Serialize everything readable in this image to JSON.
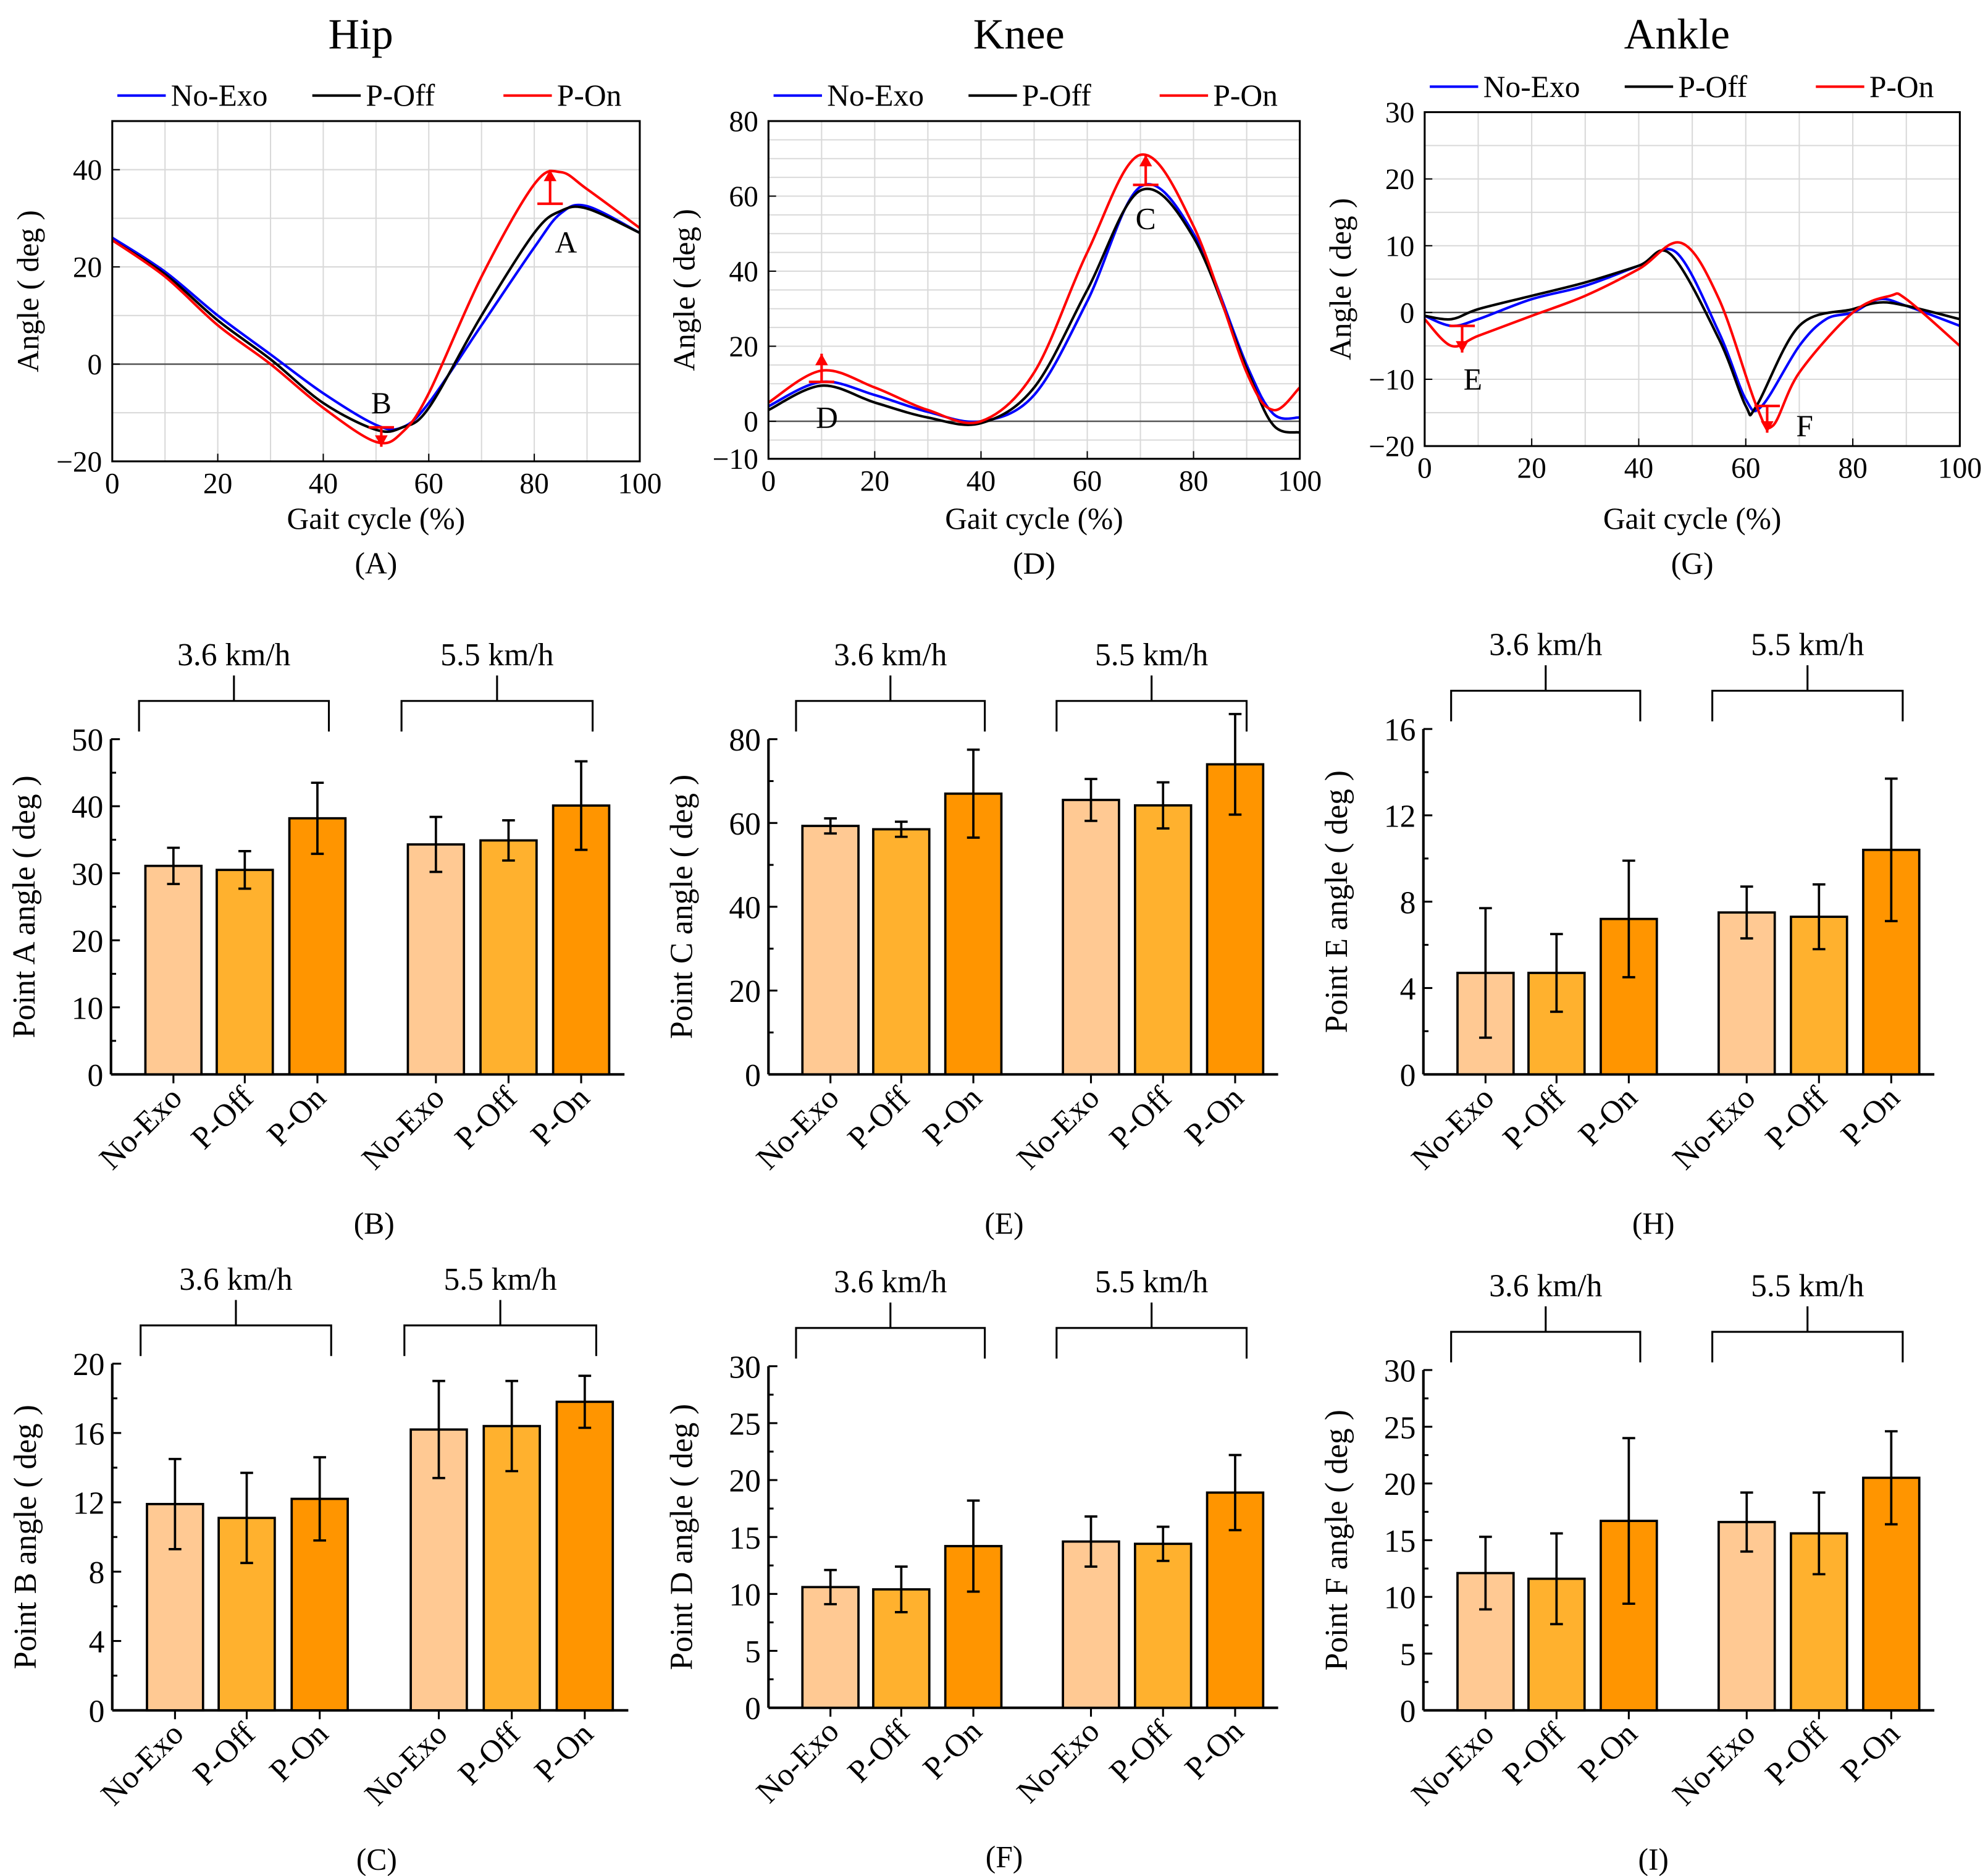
{
  "colors": {
    "no_exo_line": "#0000ff",
    "p_off_line": "#000000",
    "p_on_line": "#ff0000",
    "bar_no_exo": "#FFC993",
    "bar_p_off": "#FFB12E",
    "bar_p_on": "#FF9500",
    "grid": "#d9d9d9"
  },
  "chart_data": [
    {
      "panel": "(A)",
      "type": "line",
      "title": "Hip",
      "xlabel": "Gait cycle (%)",
      "ylabel": "Angle ( deg )",
      "xlim": [
        0,
        100
      ],
      "ylim": [
        -20,
        50
      ],
      "xticks": [
        0,
        20,
        40,
        60,
        80,
        100
      ],
      "yticks": [
        -20,
        0,
        20,
        40
      ],
      "grid": true,
      "legend": "top",
      "series": [
        {
          "name": "No-Exo",
          "color": "#0000ff",
          "x": [
            0,
            10,
            20,
            30,
            40,
            50,
            55,
            60,
            70,
            80,
            85,
            90,
            100
          ],
          "y": [
            26,
            19,
            10,
            2,
            -6,
            -12.5,
            -13,
            -8,
            8,
            24,
            31,
            32.5,
            27
          ]
        },
        {
          "name": "P-Off",
          "color": "#000000",
          "x": [
            0,
            10,
            20,
            30,
            40,
            50,
            55,
            60,
            70,
            80,
            85,
            90,
            100
          ],
          "y": [
            25.5,
            18.5,
            9,
            1,
            -8,
            -13.5,
            -13,
            -9,
            10,
            27,
            31.5,
            32,
            27
          ]
        },
        {
          "name": "P-On",
          "color": "#ff0000",
          "x": [
            0,
            10,
            20,
            30,
            40,
            50,
            55,
            60,
            70,
            80,
            85,
            90,
            100
          ],
          "y": [
            25.5,
            18,
            8,
            0,
            -9,
            -16,
            -14,
            -6,
            18,
            37,
            39.5,
            36,
            28
          ]
        }
      ],
      "annotations": [
        {
          "label": "A",
          "x": 83,
          "from": 33,
          "to": 40,
          "tx": 86,
          "ty": 25
        },
        {
          "label": "B",
          "x": 51,
          "from": -13,
          "to": -17,
          "tx": 51,
          "ty": -8
        }
      ]
    },
    {
      "panel": "(D)",
      "type": "line",
      "title": "Knee",
      "xlabel": "Gait cycle (%)",
      "ylabel": "Angle ( deg )",
      "xlim": [
        0,
        100
      ],
      "ylim": [
        -10,
        80
      ],
      "xticks": [
        0,
        20,
        40,
        60,
        80,
        100
      ],
      "yticks": [
        -10,
        0,
        20,
        40,
        60,
        80
      ],
      "grid": true,
      "legend": "top",
      "series": [
        {
          "name": "No-Exo",
          "color": "#0000ff",
          "x": [
            0,
            10,
            20,
            30,
            40,
            50,
            60,
            70,
            80,
            90,
            95,
            100
          ],
          "y": [
            4,
            10.5,
            7,
            2.5,
            0,
            7,
            32,
            62.5,
            50,
            15,
            2,
            1
          ]
        },
        {
          "name": "P-Off",
          "color": "#000000",
          "x": [
            0,
            10,
            20,
            30,
            40,
            50,
            60,
            70,
            80,
            90,
            95,
            100
          ],
          "y": [
            3,
            9.5,
            5,
            1,
            -0.5,
            9,
            35,
            61.5,
            49,
            14,
            -1,
            -3
          ]
        },
        {
          "name": "P-On",
          "color": "#ff0000",
          "x": [
            0,
            10,
            20,
            30,
            40,
            50,
            60,
            70,
            80,
            90,
            95,
            100
          ],
          "y": [
            5,
            13.5,
            9,
            3,
            0,
            13,
            45,
            71,
            52,
            13,
            3,
            9
          ]
        }
      ],
      "annotations": [
        {
          "label": "C",
          "x": 71,
          "from": 63,
          "to": 71,
          "tx": 71,
          "ty": 54
        },
        {
          "label": "D",
          "x": 10,
          "from": 10.5,
          "to": 18,
          "tx": 11,
          "ty": 1
        }
      ]
    },
    {
      "panel": "(G)",
      "type": "line",
      "title": "Ankle",
      "xlabel": "Gait cycle (%)",
      "ylabel": "Angle ( deg )",
      "xlim": [
        0,
        100
      ],
      "ylim": [
        -20,
        30
      ],
      "xticks": [
        0,
        20,
        40,
        60,
        80,
        100
      ],
      "yticks": [
        -20,
        -10,
        0,
        10,
        20,
        30
      ],
      "grid": true,
      "legend": "top",
      "series": [
        {
          "name": "No-Exo",
          "color": "#0000ff",
          "x": [
            0,
            5,
            10,
            20,
            30,
            40,
            47,
            55,
            60,
            63,
            70,
            75,
            80,
            85,
            90,
            100
          ],
          "y": [
            -0.5,
            -2,
            -1,
            2,
            4,
            7,
            9,
            -3,
            -13,
            -14,
            -5,
            -1,
            0,
            2,
            1,
            -2
          ]
        },
        {
          "name": "P-Off",
          "color": "#000000",
          "x": [
            0,
            5,
            10,
            20,
            30,
            40,
            46,
            55,
            60,
            62,
            70,
            80,
            85,
            90,
            100
          ],
          "y": [
            -0.5,
            -1,
            0.5,
            2.5,
            4.5,
            7,
            8.7,
            -4,
            -14,
            -14,
            -2,
            0.5,
            1.5,
            1,
            -1
          ]
        },
        {
          "name": "P-On",
          "color": "#ff0000",
          "x": [
            0,
            5,
            10,
            20,
            30,
            40,
            48,
            55,
            62,
            65,
            70,
            80,
            87,
            90,
            100
          ],
          "y": [
            -1,
            -5,
            -3.5,
            -0.5,
            2.5,
            6.5,
            10.4,
            2,
            -14,
            -17,
            -9,
            0,
            2.5,
            2,
            -5
          ]
        }
      ],
      "annotations": [
        {
          "label": "E",
          "x": 7,
          "from": -2,
          "to": -6,
          "tx": 9,
          "ty": -10
        },
        {
          "label": "F",
          "x": 64,
          "from": -14,
          "to": -18,
          "tx": 71,
          "ty": -17
        }
      ]
    },
    {
      "panel": "(B)",
      "type": "bar",
      "ylabel": "Point A  angle ( deg )",
      "ylim": [
        0,
        50
      ],
      "yticks": [
        0,
        10,
        20,
        30,
        40,
        50
      ],
      "groups": [
        "3.6 km/h",
        "5.5 km/h"
      ],
      "categories": [
        "No-Exo",
        "P-Off",
        "P-On"
      ],
      "series": [
        {
          "group": "3.6 km/h",
          "values": [
            31.1,
            30.5,
            38.2
          ],
          "errors": [
            2.7,
            2.8,
            5.3
          ]
        },
        {
          "group": "5.5 km/h",
          "values": [
            34.3,
            34.9,
            40.1
          ],
          "errors": [
            4.1,
            3.0,
            6.6
          ]
        }
      ]
    },
    {
      "panel": "(E)",
      "type": "bar",
      "ylabel": "Point C  angle ( deg )",
      "ylim": [
        0,
        80
      ],
      "yticks": [
        0,
        20,
        40,
        60,
        80
      ],
      "groups": [
        "3.6 km/h",
        "5.5 km/h"
      ],
      "categories": [
        "No-Exo",
        "P-Off",
        "P-On"
      ],
      "series": [
        {
          "group": "3.6 km/h",
          "values": [
            59.3,
            58.5,
            67.0
          ],
          "errors": [
            1.8,
            1.8,
            10.5
          ]
        },
        {
          "group": "5.5 km/h",
          "values": [
            65.5,
            64.2,
            74.0
          ],
          "errors": [
            5.0,
            5.5,
            12.0
          ]
        }
      ]
    },
    {
      "panel": "(H)",
      "type": "bar",
      "ylabel": "Point E  angle ( deg )",
      "ylim": [
        0,
        16
      ],
      "yticks": [
        0,
        4,
        8,
        12,
        16
      ],
      "groups": [
        "3.6 km/h",
        "5.5 km/h"
      ],
      "categories": [
        "No-Exo",
        "P-Off",
        "P-On"
      ],
      "series": [
        {
          "group": "3.6 km/h",
          "values": [
            4.7,
            4.7,
            7.2
          ],
          "errors": [
            3.0,
            1.8,
            2.7
          ]
        },
        {
          "group": "5.5 km/h",
          "values": [
            7.5,
            7.3,
            10.4
          ],
          "errors": [
            1.2,
            1.5,
            3.3
          ]
        }
      ]
    },
    {
      "panel": "(C)",
      "type": "bar",
      "ylabel": "Point B  angle ( deg )",
      "ylim": [
        0,
        20
      ],
      "yticks": [
        0,
        4,
        8,
        12,
        16,
        20
      ],
      "groups": [
        "3.6 km/h",
        "5.5 km/h"
      ],
      "categories": [
        "No-Exo",
        "P-Off",
        "P-On"
      ],
      "series": [
        {
          "group": "3.6 km/h",
          "values": [
            11.9,
            11.1,
            12.2
          ],
          "errors": [
            2.6,
            2.6,
            2.4
          ]
        },
        {
          "group": "5.5 km/h",
          "values": [
            16.2,
            16.4,
            17.8
          ],
          "errors": [
            2.8,
            2.6,
            1.5
          ]
        }
      ]
    },
    {
      "panel": "(F)",
      "type": "bar",
      "ylabel": "Point D  angle ( deg )",
      "ylim": [
        0,
        30
      ],
      "yticks": [
        0,
        5,
        10,
        15,
        20,
        25,
        30
      ],
      "groups": [
        "3.6 km/h",
        "5.5 km/h"
      ],
      "categories": [
        "No-Exo",
        "P-Off",
        "P-On"
      ],
      "series": [
        {
          "group": "3.6 km/h",
          "values": [
            10.6,
            10.4,
            14.2
          ],
          "errors": [
            1.5,
            2.0,
            4.0
          ]
        },
        {
          "group": "5.5 km/h",
          "values": [
            14.6,
            14.4,
            18.9
          ],
          "errors": [
            2.2,
            1.5,
            3.3
          ]
        }
      ]
    },
    {
      "panel": "(I)",
      "type": "bar",
      "ylabel": "Point F  angle ( deg )",
      "ylim": [
        0,
        30
      ],
      "yticks": [
        0,
        5,
        10,
        15,
        20,
        25,
        30
      ],
      "groups": [
        "3.6 km/h",
        "5.5 km/h"
      ],
      "categories": [
        "No-Exo",
        "P-Off",
        "P-On"
      ],
      "series": [
        {
          "group": "3.6 km/h",
          "values": [
            12.1,
            11.6,
            16.7
          ],
          "errors": [
            3.2,
            4.0,
            7.3
          ]
        },
        {
          "group": "5.5 km/h",
          "values": [
            16.6,
            15.6,
            20.5
          ],
          "errors": [
            2.6,
            3.6,
            4.1
          ]
        }
      ]
    }
  ]
}
